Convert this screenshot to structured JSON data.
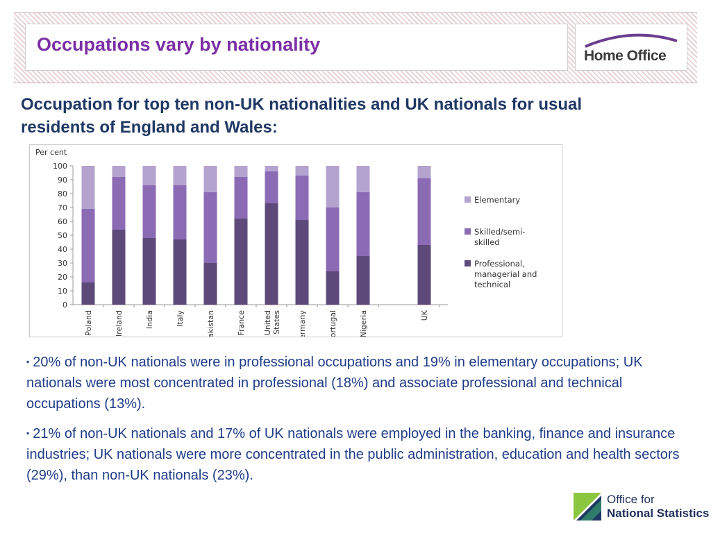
{
  "header": {
    "title": "Occupations vary by nationality",
    "logo_text": "Home Office"
  },
  "subtitle": "Occupation for top ten non-UK nationalities and UK nationals for usual residents of England and Wales:",
  "chart_data": {
    "type": "bar",
    "stacked": true,
    "ylabel": "Per cent",
    "ylim": [
      0,
      100
    ],
    "yticks": [
      0,
      10,
      20,
      30,
      40,
      50,
      60,
      70,
      80,
      90,
      100
    ],
    "categories": [
      "Poland",
      "Ireland",
      "India",
      "Italy",
      "Pakistan",
      "France",
      "United States",
      "Germany",
      "Portugal",
      "Nigeria",
      "UK"
    ],
    "category_labels": [
      [
        "Poland"
      ],
      [
        "Ireland"
      ],
      [
        "India"
      ],
      [
        "Italy"
      ],
      [
        "Pakistan"
      ],
      [
        "France"
      ],
      [
        "United",
        "States"
      ],
      [
        "Germany"
      ],
      [
        "Portugal"
      ],
      [
        "Nigeria"
      ],
      [
        "UK"
      ]
    ],
    "series": [
      {
        "name": "Professional, managerial and technical",
        "label_lines": [
          "Professional,",
          "managerial and",
          "technical"
        ],
        "color": "#5e4a7a",
        "values": [
          16,
          54,
          48,
          47,
          30,
          62,
          73,
          61,
          24,
          35,
          43
        ]
      },
      {
        "name": "Skilled/semi-skilled",
        "label_lines": [
          "Skilled/semi-",
          "skilled"
        ],
        "color": "#8c6bb5",
        "values": [
          53,
          38,
          38,
          39,
          51,
          30,
          23,
          32,
          46,
          46,
          48
        ]
      },
      {
        "name": "Elementary",
        "label_lines": [
          "Elementary"
        ],
        "color": "#b4a3cf",
        "values": [
          31,
          8,
          14,
          14,
          19,
          8,
          4,
          7,
          30,
          19,
          9
        ]
      }
    ],
    "legend_order": [
      2,
      1,
      0
    ],
    "legend_position": "right",
    "grid": false
  },
  "bullets": [
    "20% of non-UK nationals were in professional occupations and 19% in elementary occupations; UK nationals were most concentrated in professional (18%) and associate professional and technical occupations (13%).",
    "21% of non-UK nationals and 17% of UK nationals were employed in the banking, finance and insurance industries; UK nationals were more concentrated in the public administration, education and health sectors (29%), than non-UK nationals (23%)."
  ],
  "bullet_marker": "▪",
  "footer": {
    "ons_line1": "Office for",
    "ons_line2": "National Statistics"
  },
  "colors": {
    "title": "#7b2fa6",
    "subtitle": "#1f3864",
    "body_text": "#1f3c88",
    "home_office_arc": "#6b3d8f",
    "ons_green": "#8cc63f",
    "ons_blue": "#1f3864"
  }
}
